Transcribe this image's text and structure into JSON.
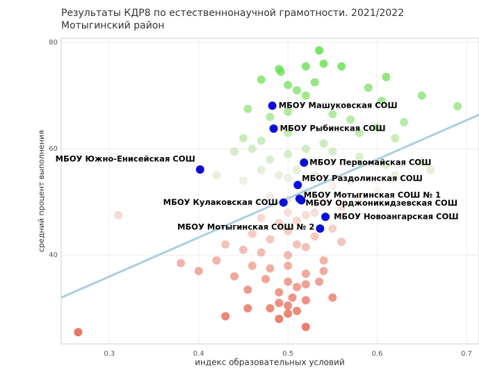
{
  "chart_data": {
    "type": "scatter",
    "title": "Результаты КДР8 по естественнонаучной грамотности. 2021/2022",
    "subtitle": "Мотыгинский район",
    "x_label": "индекс образовательных условий",
    "y_label": "средний процент выполнения",
    "xlim": [
      0.246,
      0.714
    ],
    "ylim": [
      23.3,
      80.8
    ],
    "xticks": [
      0.3,
      0.4,
      0.5,
      0.6,
      0.7
    ],
    "yticks": [
      40,
      60,
      80
    ],
    "grid": true,
    "gradient_colors": [
      "#e03c24",
      "#f7ece6",
      "#3ada22"
    ],
    "series": [
      {
        "name": "школы",
        "x": [
          0.535,
          0.54,
          0.52,
          0.49,
          0.492,
          0.47,
          0.5,
          0.51,
          0.52,
          0.53,
          0.56,
          0.59,
          0.61,
          0.605,
          0.65,
          0.69,
          0.455,
          0.48,
          0.5,
          0.55,
          0.57,
          0.58,
          0.45,
          0.47,
          0.5,
          0.54,
          0.6,
          0.62,
          0.63,
          0.44,
          0.46,
          0.48,
          0.5,
          0.52,
          0.55,
          0.58,
          0.61,
          0.65,
          0.66,
          0.31,
          0.42,
          0.45,
          0.47,
          0.49,
          0.5,
          0.51,
          0.53,
          0.55,
          0.57,
          0.6,
          0.62,
          0.48,
          0.5,
          0.52,
          0.53,
          0.54,
          0.56,
          0.58,
          0.47,
          0.49,
          0.5,
          0.51,
          0.52,
          0.55,
          0.46,
          0.48,
          0.5,
          0.51,
          0.53,
          0.43,
          0.45,
          0.47,
          0.5,
          0.52,
          0.54,
          0.56,
          0.38,
          0.4,
          0.42,
          0.44,
          0.46,
          0.48,
          0.5,
          0.52,
          0.54,
          0.5,
          0.51,
          0.455,
          0.475,
          0.49,
          0.505,
          0.52,
          0.535,
          0.49,
          0.5,
          0.51,
          0.52,
          0.48,
          0.5,
          0.265,
          0.43,
          0.455,
          0.49,
          0.52,
          0.55
        ],
        "values": [
          78.5,
          76,
          75.5,
          75,
          74.5,
          73,
          72,
          71,
          70,
          72.5,
          75.5,
          71.5,
          73.5,
          69,
          70,
          68,
          67.5,
          66,
          67,
          66.5,
          65.5,
          63,
          62,
          61.5,
          63,
          61,
          64,
          62,
          65,
          59.5,
          60,
          58,
          59,
          60,
          59.5,
          58.5,
          57,
          57.5,
          56,
          47.5,
          55,
          54,
          56,
          55,
          54.5,
          56,
          55,
          53,
          54,
          52,
          55,
          51,
          50.5,
          52,
          48,
          50,
          49,
          51,
          47,
          46,
          48,
          46.5,
          47.5,
          45,
          44,
          43,
          44.5,
          42,
          43.5,
          42,
          41,
          40.5,
          40,
          41.5,
          39,
          42.5,
          38.5,
          37,
          39,
          36,
          38,
          37.5,
          38,
          36.5,
          37,
          35,
          34,
          33.5,
          35.5,
          33,
          32,
          34.5,
          35,
          31,
          30.5,
          29.5,
          31.5,
          30,
          29,
          25.5,
          28.5,
          30,
          28,
          26.5,
          32
        ]
      },
      {
        "name": "выделенные школы",
        "color": "#0a10d8",
        "labels": [
          "МБОУ Машуковская СОШ",
          "МБОУ Рыбинская СОШ",
          "МБОУ Южно-Енисейская СОШ",
          "МБОУ Первомайская СОШ",
          "МБОУ Раздолинская СОШ",
          "МБОУ Мотыгинская СОШ № 1",
          "МБОУ Кулаковская СОШ",
          "МБОУ Орджоникидзевская СОШ",
          "МБОУ Новоангарская СОШ",
          "МБОУ Мотыгинская СОШ № 2"
        ],
        "x": [
          0.4825,
          0.484,
          0.4016,
          0.518,
          0.511,
          0.513,
          0.495,
          0.515,
          0.542,
          0.536
        ],
        "values": [
          68.1,
          63.8,
          56.1,
          57.4,
          53.2,
          50.6,
          49.9,
          50.3,
          47.2,
          45.0
        ]
      }
    ],
    "trend_line": {
      "color": "#a8cfe0",
      "x": [
        0.246,
        0.714
      ],
      "values": [
        32.0,
        66.4
      ]
    }
  }
}
